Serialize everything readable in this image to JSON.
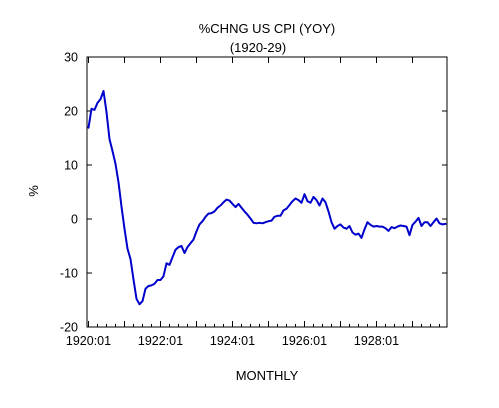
{
  "chart_data": {
    "type": "line",
    "title": "%CHNG US CPI (YOY)",
    "subtitle": "(1920-29)",
    "xlabel": "MONTHLY",
    "ylabel": "%",
    "ylim": [
      -20,
      30
    ],
    "xlim": [
      "1920:01",
      "1929:12"
    ],
    "yticks": [
      "30",
      "20",
      "10",
      "0",
      "-10",
      "-20"
    ],
    "xticks": [
      "1920:01",
      "1922:01",
      "1924:01",
      "1926:01",
      "1928:01"
    ],
    "grid": false,
    "legend": "none",
    "line_color": "#0000cc",
    "x": [
      "1920:01",
      "1920:02",
      "1920:03",
      "1920:04",
      "1920:05",
      "1920:06",
      "1920:07",
      "1920:08",
      "1920:09",
      "1920:10",
      "1920:11",
      "1920:12",
      "1921:01",
      "1921:02",
      "1921:03",
      "1921:04",
      "1921:05",
      "1921:06",
      "1921:07",
      "1921:08",
      "1921:09",
      "1921:10",
      "1921:11",
      "1921:12",
      "1922:01",
      "1922:02",
      "1922:03",
      "1922:04",
      "1922:05",
      "1922:06",
      "1922:07",
      "1922:08",
      "1922:09",
      "1922:10",
      "1922:11",
      "1922:12",
      "1923:01",
      "1923:02",
      "1923:03",
      "1923:04",
      "1923:05",
      "1923:06",
      "1923:07",
      "1923:08",
      "1923:09",
      "1923:10",
      "1923:11",
      "1923:12",
      "1924:01",
      "1924:02",
      "1924:03",
      "1924:04",
      "1924:05",
      "1924:06",
      "1924:07",
      "1924:08",
      "1924:09",
      "1924:10",
      "1924:11",
      "1924:12",
      "1925:01",
      "1925:02",
      "1925:03",
      "1925:04",
      "1925:05",
      "1925:06",
      "1925:07",
      "1925:08",
      "1925:09",
      "1925:10",
      "1925:11",
      "1925:12",
      "1926:01",
      "1926:02",
      "1926:03",
      "1926:04",
      "1926:05",
      "1926:06",
      "1926:07",
      "1926:08",
      "1926:09",
      "1926:10",
      "1926:11",
      "1926:12",
      "1927:01",
      "1927:02",
      "1927:03",
      "1927:04",
      "1927:05",
      "1927:06",
      "1927:07",
      "1927:08",
      "1927:09",
      "1927:10",
      "1927:11",
      "1927:12",
      "1928:01",
      "1928:02",
      "1928:03",
      "1928:04",
      "1928:05",
      "1928:06",
      "1928:07",
      "1928:08",
      "1928:09",
      "1928:10",
      "1928:11",
      "1928:12",
      "1929:01",
      "1929:02",
      "1929:03",
      "1929:04",
      "1929:05",
      "1929:06",
      "1929:07",
      "1929:08",
      "1929:09",
      "1929:10",
      "1929:11",
      "1929:12"
    ],
    "series": [
      {
        "values": [
          16.9,
          20.4,
          20.2,
          21.5,
          22.2,
          23.7,
          19.8,
          14.8,
          12.6,
          10.2,
          6.8,
          2.3,
          -1.8,
          -5.5,
          -7.4,
          -11.2,
          -14.8,
          -15.8,
          -15.2,
          -12.9,
          -12.4,
          -12.3,
          -12.0,
          -11.3,
          -11.3,
          -10.6,
          -8.2,
          -8.5,
          -7.1,
          -5.7,
          -5.2,
          -5.0,
          -6.3,
          -5.2,
          -4.5,
          -3.8,
          -2.3,
          -1.0,
          -0.4,
          0.4,
          1.0,
          1.1,
          1.4,
          2.1,
          2.5,
          3.1,
          3.6,
          3.4,
          2.8,
          2.2,
          2.8,
          2.1,
          1.4,
          0.8,
          0.1,
          -0.7,
          -0.8,
          -0.7,
          -0.8,
          -0.6,
          -0.4,
          -0.3,
          0.4,
          0.6,
          0.6,
          1.6,
          1.9,
          2.6,
          3.3,
          3.8,
          3.5,
          3.0,
          4.6,
          3.3,
          3.0,
          4.1,
          3.5,
          2.5,
          3.8,
          3.1,
          1.4,
          -0.6,
          -1.8,
          -1.3,
          -1.0,
          -1.6,
          -1.8,
          -1.3,
          -2.5,
          -2.9,
          -2.7,
          -3.5,
          -1.9,
          -0.6,
          -1.1,
          -1.4,
          -1.3,
          -1.4,
          -1.4,
          -1.7,
          -2.2,
          -1.5,
          -1.7,
          -1.4,
          -1.2,
          -1.3,
          -1.4,
          -3.0,
          -1.1,
          -0.5,
          0.2,
          -1.3,
          -0.6,
          -0.6,
          -1.3,
          -0.6,
          0.1,
          -0.8,
          -1.0,
          -0.9
        ]
      }
    ]
  }
}
